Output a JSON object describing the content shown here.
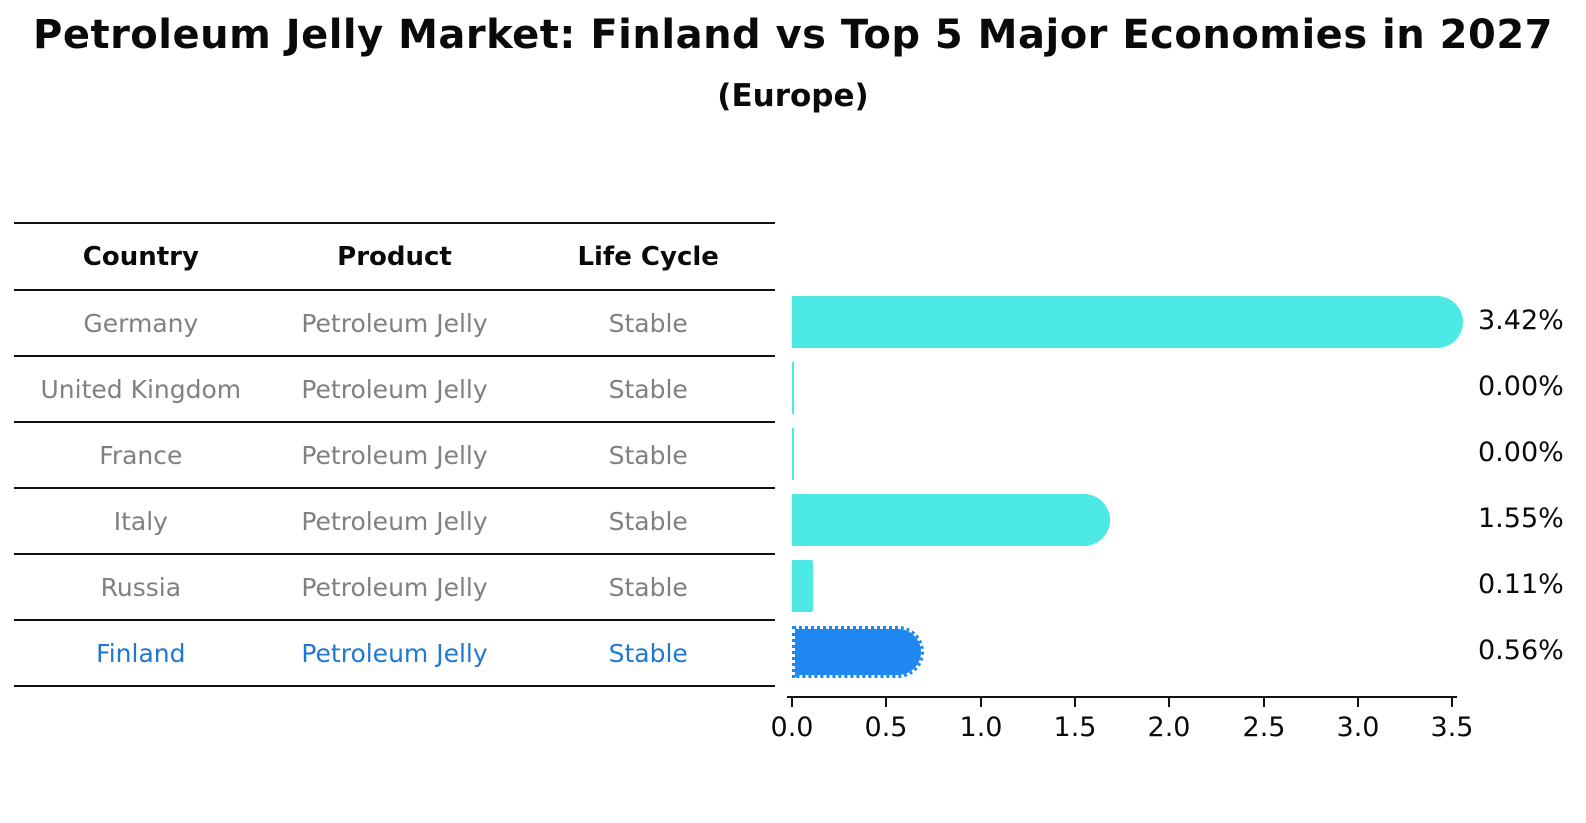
{
  "chart": {
    "title": "Petroleum Jelly Market: Finland vs Top 5 Major Economies in 2027",
    "subtitle": "(Europe)"
  },
  "table": {
    "columns": [
      "Country",
      "Product",
      "Life Cycle"
    ],
    "rows": [
      {
        "country": "Germany",
        "product": "Petroleum Jelly",
        "life_cycle": "Stable"
      },
      {
        "country": "United Kingdom",
        "product": "Petroleum Jelly",
        "life_cycle": "Stable"
      },
      {
        "country": "France",
        "product": "Petroleum Jelly",
        "life_cycle": "Stable"
      },
      {
        "country": "Italy",
        "product": "Petroleum Jelly",
        "life_cycle": "Stable"
      },
      {
        "country": "Russia",
        "product": "Petroleum Jelly",
        "life_cycle": "Stable"
      },
      {
        "country": "Finland",
        "product": "Petroleum Jelly",
        "life_cycle": "Stable"
      }
    ]
  },
  "chart_data": {
    "type": "bar",
    "orientation": "horizontal",
    "title": "Petroleum Jelly Market: Finland vs Top 5 Major Economies in 2027",
    "subtitle": "(Europe)",
    "categories": [
      "Germany",
      "United Kingdom",
      "France",
      "Italy",
      "Russia",
      "Finland"
    ],
    "values": [
      3.42,
      0.0,
      0.0,
      1.55,
      0.11,
      0.56
    ],
    "value_labels": [
      "3.42%",
      "0.00%",
      "0.00%",
      "1.55%",
      "0.11%",
      "0.56%"
    ],
    "x_ticks": [
      "0.0",
      "0.5",
      "1.0",
      "1.5",
      "2.0",
      "2.5",
      "3.0",
      "3.5"
    ],
    "xlim": [
      0,
      3.5
    ],
    "grid": false,
    "legend": "none",
    "bar_color": "#4de9e4",
    "highlight_color": "#1e88f0",
    "highlight_index": 5,
    "highlight_text_color": "#1f78d1"
  }
}
